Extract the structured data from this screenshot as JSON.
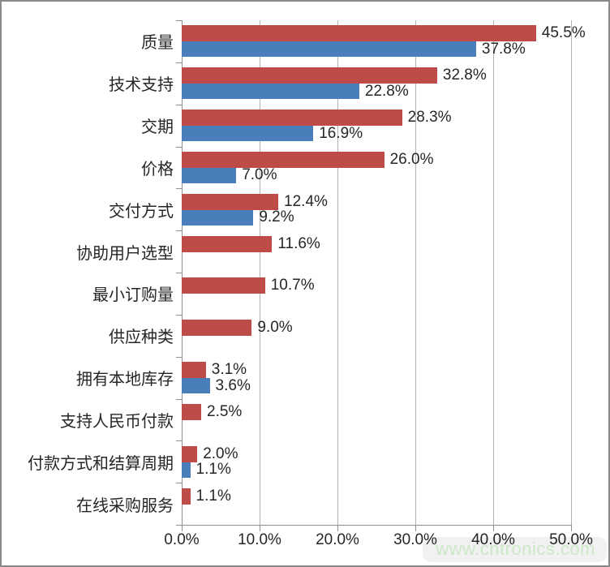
{
  "frame": {
    "background": "#ffffff",
    "border_color": "#8a8a8a"
  },
  "watermark": {
    "text": "www.cntronics.com",
    "color": "#cde7c8"
  },
  "chart_data": {
    "type": "bar",
    "orientation": "horizontal-grouped",
    "title": "",
    "xlabel": "",
    "ylabel": "",
    "categories": [
      "质量",
      "技术支持",
      "交期",
      "价格",
      "交付方式",
      "协助用户选型",
      "最小订购量",
      "供应种类",
      "拥有本地库存",
      "支持人民币付款",
      "付款方式和结算周期",
      "在线采购服务"
    ],
    "series": [
      {
        "name": "red-series",
        "color": "#be4b48",
        "values": [
          45.5,
          32.8,
          28.3,
          26.0,
          12.4,
          11.6,
          10.7,
          9.0,
          3.1,
          2.5,
          2.0,
          1.1
        ]
      },
      {
        "name": "blue-series",
        "color": "#4a7ebb",
        "values": [
          37.8,
          22.8,
          16.9,
          7.0,
          9.2,
          null,
          null,
          null,
          3.6,
          null,
          1.1,
          null
        ]
      }
    ],
    "value_suffix": "%",
    "value_decimals": 1,
    "x_ticks": [
      "0.0%",
      "10.0%",
      "20.0%",
      "30.0%",
      "40.0%",
      "50.0%"
    ],
    "xlim": [
      0,
      50
    ],
    "grid": true,
    "gridline_color": "#b3b3b3",
    "axis_color": "#8f8f8f",
    "text_color": "#262626",
    "legend": "none"
  }
}
